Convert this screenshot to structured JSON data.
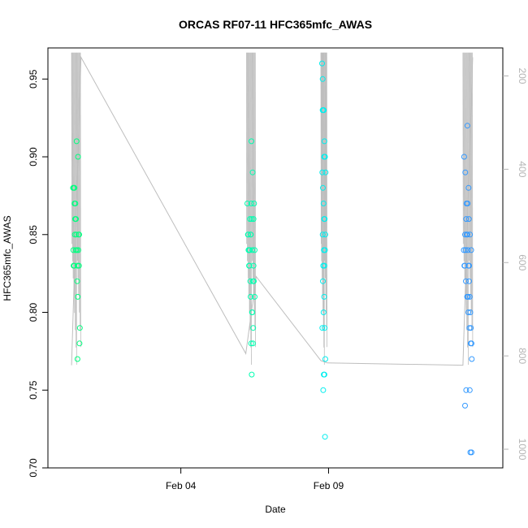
{
  "chart_data": {
    "type": "scatter",
    "title": "ORCAS RF07-11 HFC365mfc_AWAS",
    "xlabel": "Date",
    "ylabel": "HFC365mfc_AWAS",
    "y2label": "",
    "x_ticks": [
      "Feb 04",
      "Feb 09"
    ],
    "x_tick_positions": [
      4,
      9
    ],
    "xlim": [
      -0.5,
      14.9
    ],
    "ylim": [
      0.7,
      0.97
    ],
    "y_ticks": [
      0.7,
      0.75,
      0.8,
      0.85,
      0.9,
      0.95
    ],
    "y_tick_labels": [
      "0.70",
      "0.75",
      "0.80",
      "0.85",
      "0.90",
      "0.95"
    ],
    "y2lim": [
      1040,
      140
    ],
    "y2_ticks": [
      200,
      400,
      600,
      800,
      1000
    ],
    "y2_tick_labels": [
      "200",
      "400",
      "600",
      "800",
      "1000"
    ],
    "grid": false,
    "legend": "none",
    "colors": {
      "RF07": "#00ff7f",
      "RF08": "#00ffb0",
      "RF09": "#00eeee",
      "RF10": "#3399ff",
      "line": "#bebebe",
      "secondary_axis": "#b4b4b4"
    },
    "flight_times": {
      "RF07": [
        0.3,
        0.6
      ],
      "RF08": [
        6.22,
        6.52
      ],
      "RF09": [
        8.74,
        8.94
      ],
      "RF10": [
        13.55,
        13.87
      ]
    },
    "series": [
      {
        "name": "RF07",
        "color": "#00ff7f",
        "x": [
          0.35,
          0.38,
          0.4,
          0.42,
          0.36,
          0.39,
          0.41,
          0.37,
          0.43,
          0.45,
          0.44,
          0.4,
          0.46,
          0.48,
          0.5,
          0.47,
          0.52,
          0.54,
          0.53,
          0.49,
          0.51,
          0.56,
          0.55,
          0.58,
          0.57,
          0.5
        ],
        "y": [
          0.88,
          0.88,
          0.87,
          0.86,
          0.84,
          0.83,
          0.85,
          0.83,
          0.87,
          0.86,
          0.84,
          0.88,
          0.85,
          0.84,
          0.83,
          0.91,
          0.9,
          0.85,
          0.84,
          0.82,
          0.81,
          0.85,
          0.83,
          0.79,
          0.78,
          0.77
        ]
      },
      {
        "name": "RF08",
        "color": "#00ffb0",
        "x": [
          6.25,
          6.28,
          6.3,
          6.32,
          6.34,
          6.36,
          6.38,
          6.4,
          6.42,
          6.44,
          6.46,
          6.48,
          6.5,
          6.27,
          6.31,
          6.35,
          6.39,
          6.43,
          6.47,
          6.33,
          6.37,
          6.41,
          6.45,
          6.29,
          6.4,
          6.44,
          6.36,
          6.42,
          6.38,
          6.46,
          6.5
        ],
        "y": [
          0.87,
          0.85,
          0.84,
          0.83,
          0.86,
          0.85,
          0.87,
          0.86,
          0.84,
          0.82,
          0.83,
          0.87,
          0.84,
          0.85,
          0.83,
          0.82,
          0.91,
          0.89,
          0.82,
          0.84,
          0.85,
          0.8,
          0.79,
          0.84,
          0.76,
          0.78,
          0.81,
          0.8,
          0.78,
          0.86,
          0.81
        ]
      },
      {
        "name": "RF09",
        "color": "#00eeee",
        "x": [
          8.78,
          8.8,
          8.82,
          8.84,
          8.86,
          8.88,
          8.9,
          8.79,
          8.81,
          8.83,
          8.85,
          8.87,
          8.89,
          8.8,
          8.84,
          8.88,
          8.82,
          8.86,
          8.81,
          8.85,
          8.83,
          8.87,
          8.79,
          8.89,
          8.84,
          8.86,
          8.82,
          8.88,
          8.8,
          8.85
        ],
        "y": [
          0.96,
          0.95,
          0.93,
          0.93,
          0.91,
          0.9,
          0.89,
          0.89,
          0.88,
          0.87,
          0.86,
          0.86,
          0.85,
          0.85,
          0.84,
          0.84,
          0.83,
          0.83,
          0.82,
          0.81,
          0.8,
          0.79,
          0.79,
          0.77,
          0.76,
          0.76,
          0.75,
          0.72,
          0.93,
          0.9
        ]
      },
      {
        "name": "RF10",
        "color": "#3399ff",
        "x": [
          13.58,
          13.6,
          13.62,
          13.64,
          13.66,
          13.68,
          13.7,
          13.72,
          13.74,
          13.76,
          13.78,
          13.8,
          13.82,
          13.84,
          13.59,
          13.63,
          13.67,
          13.71,
          13.75,
          13.79,
          13.83,
          13.61,
          13.65,
          13.69,
          13.73,
          13.77,
          13.81,
          13.85,
          13.7,
          13.74,
          13.66,
          13.78,
          13.62,
          13.8,
          13.84,
          13.76,
          13.72
        ],
        "y": [
          0.84,
          0.83,
          0.85,
          0.84,
          0.86,
          0.85,
          0.85,
          0.84,
          0.83,
          0.82,
          0.81,
          0.8,
          0.79,
          0.78,
          0.9,
          0.89,
          0.87,
          0.87,
          0.86,
          0.85,
          0.84,
          0.83,
          0.82,
          0.81,
          0.8,
          0.79,
          0.78,
          0.77,
          0.92,
          0.88,
          0.75,
          0.75,
          0.74,
          0.71,
          0.71,
          0.83,
          0.81
        ]
      }
    ],
    "altitude_line": {
      "name": "",
      "axis": "right",
      "color": "#bebebe",
      "x": [
        0.3,
        0.62,
        6.2,
        6.55,
        8.74,
        8.96,
        13.55,
        13.88
      ],
      "y": [
        820,
        160,
        795,
        630,
        810,
        815,
        820,
        160
      ]
    }
  }
}
